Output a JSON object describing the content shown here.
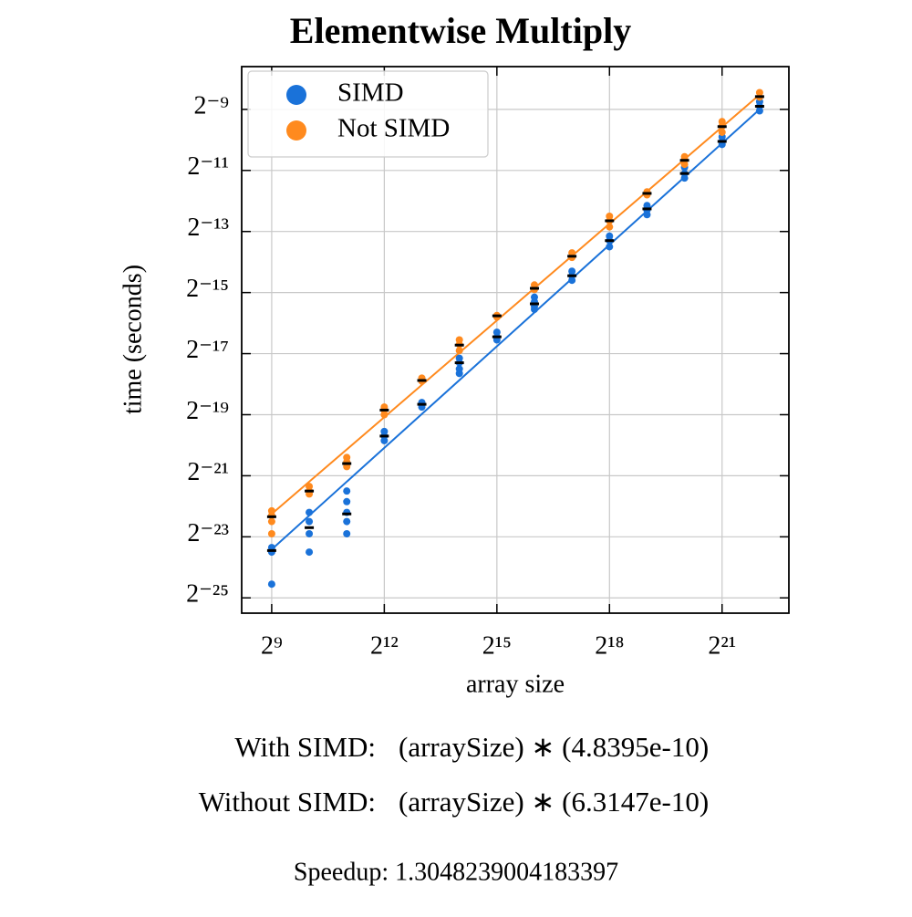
{
  "chart_data": {
    "type": "scatter",
    "title": "Elementwise Multiply",
    "xlabel": "array size",
    "ylabel": "time (seconds)",
    "xscale": "log",
    "yscale": "log",
    "log_base": 2,
    "grid": true,
    "legend_position": "upper-left",
    "xlim": [
      294.1,
      7201000
    ],
    "ylim": [
      2.107e-08,
      0.005156
    ],
    "xticks": [
      {
        "value": 512,
        "label": "2⁹"
      },
      {
        "value": 4096,
        "label": "2¹²"
      },
      {
        "value": 32768,
        "label": "2¹⁵"
      },
      {
        "value": 262144,
        "label": "2¹⁸"
      },
      {
        "value": 2097152,
        "label": "2²¹"
      }
    ],
    "yticks": [
      {
        "value": 2.9802322387695312e-08,
        "label": "2⁻²⁵"
      },
      {
        "value": 1.1920928955078125e-07,
        "label": "2⁻²³"
      },
      {
        "value": 4.76837158203125e-07,
        "label": "2⁻²¹"
      },
      {
        "value": 1.9073486328125e-06,
        "label": "2⁻¹⁹"
      },
      {
        "value": 7.62939453125e-06,
        "label": "2⁻¹⁷"
      },
      {
        "value": 3.0517578125e-05,
        "label": "2⁻¹⁵"
      },
      {
        "value": 0.0001220703125,
        "label": "2⁻¹³"
      },
      {
        "value": 0.00048828125,
        "label": "2⁻¹¹"
      },
      {
        "value": 0.001953125,
        "label": "2⁻⁹"
      }
    ],
    "mean_color": "#000000",
    "mean_x": [
      512,
      1024,
      2048,
      4096,
      8192,
      16384,
      32768,
      65536,
      131072,
      262144,
      524288,
      1048576,
      2097152,
      4194304
    ],
    "series": [
      {
        "name": "SIMD",
        "color": "#1a72d9",
        "x": [
          512,
          512,
          512,
          1024,
          1024,
          1024,
          1024,
          2048,
          2048,
          2048,
          2048,
          2048,
          4096,
          4096,
          4096,
          8192,
          8192,
          16384,
          16384,
          16384,
          16384,
          32768,
          32768,
          32768,
          65536,
          65536,
          65536,
          65536,
          131072,
          131072,
          131072,
          262144,
          262144,
          262144,
          524288,
          524288,
          524288,
          1048576,
          1048576,
          1048576,
          2097152,
          2097152,
          2097152,
          4194304,
          4194304,
          4194304
        ],
        "values": [
          9.35e-08,
          8.43e-08,
          4.07e-08,
          2.075e-07,
          1.686e-07,
          1.278e-07,
          8.43e-08,
          3.37e-07,
          2.65e-07,
          2.075e-07,
          1.686e-07,
          1.278e-07,
          1.303e-06,
          1.174e-06,
          1.059e-06,
          2.517e-06,
          2.268e-06,
          6.878e-06,
          6.199e-06,
          5.394e-06,
          4.86e-06,
          1.24e-05,
          1.117e-05,
          1.042e-05,
          2.751e-05,
          2.48e-05,
          2.234e-05,
          2.084e-05,
          4.96e-05,
          4.468e-05,
          4.029e-05,
          0.0001101,
          9.919e-05,
          8.632e-05,
          0.0002202,
          0.0001984,
          0.0001788,
          0.0005235,
          0.0004555,
          0.0004106,
          0.001047,
          0.0009434,
          0.0008804,
          0.002322,
          0.002094,
          0.001887
        ],
        "means": [
          8.73e-08,
          1.468e-07,
          2.005e-07,
          1.174e-06,
          2.414e-06,
          6.199e-06,
          1.117e-05,
          2.362e-05,
          4.468e-05,
          9.919e-05,
          0.000204,
          0.0004555,
          0.0009434,
          0.002094
        ],
        "fit": {
          "x": [
            512,
            4194304
          ],
          "values": [
            8.96e-08,
            0.001953
          ]
        }
      },
      {
        "name": "Not SIMD",
        "color": "#ff8a1e",
        "x": [
          512,
          512,
          512,
          512,
          1024,
          1024,
          1024,
          2048,
          2048,
          2048,
          4096,
          4096,
          4096,
          8192,
          8192,
          16384,
          16384,
          16384,
          32768,
          32768,
          65536,
          65536,
          131072,
          131072,
          262144,
          262144,
          262144,
          524288,
          524288,
          1048576,
          1048576,
          1048576,
          2097152,
          2097152,
          2097152,
          4194304,
          4194304
        ],
        "values": [
          2.15e-07,
          1.937e-07,
          1.686e-07,
          1.278e-07,
          3.74e-07,
          3.37e-07,
          3.15e-07,
          7.23e-07,
          6.51e-07,
          5.87e-07,
          2.268e-06,
          2.117e-06,
          1.907e-06,
          4.383e-06,
          4.09e-06,
          1.042e-05,
          9.391e-06,
          8.178e-06,
          1.814e-05,
          1.753e-05,
          3.629e-05,
          3.272e-05,
          7.514e-05,
          6.775e-05,
          0.0001726,
          0.0001556,
          0.0001355,
          0.0003005,
          0.0002805,
          0.000667,
          0.0006221,
          0.0005611,
          0.00148,
          0.001334,
          0.001161,
          0.002859,
          0.002578
        ],
        "means": [
          1.88e-07,
          3.37e-07,
          6.29e-07,
          2.117e-06,
          4.15e-06,
          9.26e-06,
          1.8e-05,
          3.36e-05,
          6.96e-05,
          0.0001556,
          0.00029,
          0.000614,
          0.00132,
          0.00261
        ],
        "fit": {
          "x": [
            512,
            4194304
          ],
          "values": [
            2.005e-07,
            0.002724
          ]
        }
      }
    ],
    "annotations": [
      {
        "label": "With SIMD:",
        "expression": "(arraySize) ∗ (4.8395e-10)"
      },
      {
        "label": "Without SIMD:",
        "expression": "(arraySize) ∗ (6.3147e-10)"
      }
    ],
    "footer": "Speedup: 1.3048239004183397"
  }
}
